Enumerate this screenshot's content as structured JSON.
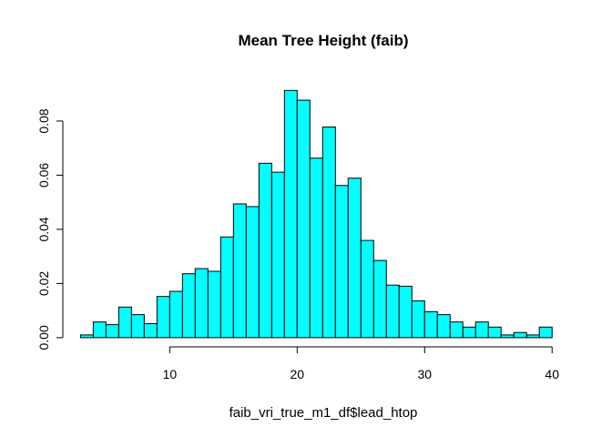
{
  "chart_data": {
    "type": "bar",
    "title": "Mean Tree Height (faib)",
    "xlabel": "faib_vri_true_m1_df$lead_htop",
    "ylabel": "",
    "bin_width": 1,
    "bin_start": 3,
    "values": [
      0.001,
      0.0058,
      0.0048,
      0.0113,
      0.0085,
      0.0052,
      0.0152,
      0.0171,
      0.0236,
      0.0255,
      0.0245,
      0.0372,
      0.0494,
      0.0484,
      0.0644,
      0.0611,
      0.0913,
      0.0877,
      0.0663,
      0.0778,
      0.0562,
      0.0589,
      0.0359,
      0.0285,
      0.0194,
      0.019,
      0.0136,
      0.0096,
      0.0085,
      0.0058,
      0.0039,
      0.0058,
      0.0039,
      0.001,
      0.0019,
      0.001,
      0.0039
    ],
    "xlim": [
      2.4,
      41.7
    ],
    "ylim": [
      -0.0034,
      0.0978
    ],
    "xticks": [
      10,
      20,
      30,
      40
    ],
    "xtick_labels": [
      "10",
      "20",
      "30",
      "40"
    ],
    "yticks": [
      0,
      0.02,
      0.04,
      0.06,
      0.08
    ],
    "ytick_labels": [
      "0.00",
      "0.02",
      "0.04",
      "0.06",
      "0.08"
    ],
    "bar_color": "#00FFFF",
    "bar_edge_color": "#000000",
    "grid": false,
    "legend": "none"
  }
}
